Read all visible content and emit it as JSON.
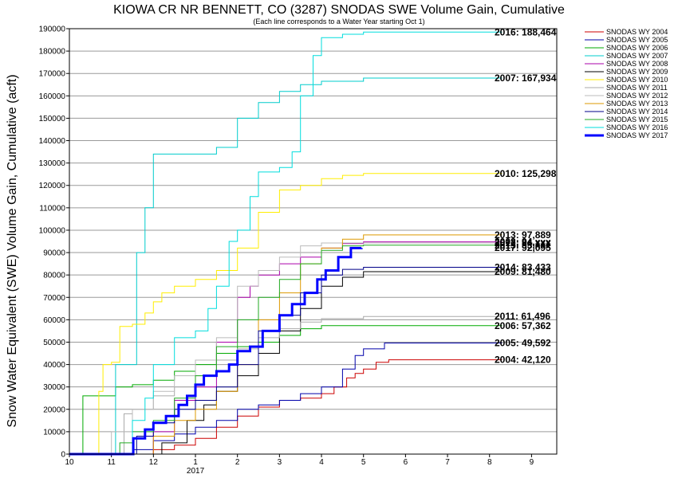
{
  "chart_data": {
    "type": "line",
    "title": "KIOWA CR NR BENNETT, CO (3287) SNODAS SWE Volume Gain, Cumulative",
    "subtitle": "(Each line corresponds to a Water Year starting Oct 1)",
    "ylabel": "Snow Water Equivalent (SWE) Volume Gain, Cumulative (acft)",
    "xlabel": "",
    "x_ticks": [
      {
        "value": 0,
        "label": "10"
      },
      {
        "value": 1,
        "label": "11"
      },
      {
        "value": 2,
        "label": "12"
      },
      {
        "value": 3,
        "label": "1"
      },
      {
        "value": 4,
        "label": "2"
      },
      {
        "value": 5,
        "label": "3"
      },
      {
        "value": 6,
        "label": "4"
      },
      {
        "value": 7,
        "label": "5"
      },
      {
        "value": 8,
        "label": "6"
      },
      {
        "value": 9,
        "label": "7"
      },
      {
        "value": 10,
        "label": "8"
      },
      {
        "value": 11,
        "label": "9"
      }
    ],
    "x_sublabel": "2017",
    "xlim": [
      0,
      11.6
    ],
    "ylim": [
      0,
      190000
    ],
    "y_ticks": [
      0,
      10000,
      20000,
      30000,
      40000,
      50000,
      60000,
      70000,
      80000,
      90000,
      100000,
      110000,
      120000,
      130000,
      140000,
      150000,
      160000,
      170000,
      180000,
      190000
    ],
    "grid": "horizontal",
    "legend_position": "right",
    "series": [
      {
        "name": "SNODAS WY 2004",
        "color": "#cc0000",
        "width": 1,
        "end_label": "2004: 42,120",
        "points": [
          [
            0,
            0
          ],
          [
            1.6,
            0
          ],
          [
            2.0,
            2000
          ],
          [
            2.5,
            4000
          ],
          [
            3.0,
            7000
          ],
          [
            3.5,
            12000
          ],
          [
            4.0,
            17000
          ],
          [
            4.5,
            21000
          ],
          [
            5.0,
            24000
          ],
          [
            5.5,
            25000
          ],
          [
            6.0,
            27000
          ],
          [
            6.3,
            30000
          ],
          [
            6.6,
            34000
          ],
          [
            6.8,
            36000
          ],
          [
            7.0,
            38000
          ],
          [
            7.3,
            41000
          ],
          [
            7.6,
            42120
          ],
          [
            10.3,
            42120
          ]
        ]
      },
      {
        "name": "SNODAS WY 2005",
        "color": "#0000aa",
        "width": 1,
        "end_label": "2005: 49,592",
        "points": [
          [
            0,
            0
          ],
          [
            1.2,
            0
          ],
          [
            1.5,
            2000
          ],
          [
            2.0,
            6000
          ],
          [
            2.5,
            9000
          ],
          [
            3.0,
            12000
          ],
          [
            3.5,
            15000
          ],
          [
            4.0,
            20000
          ],
          [
            4.5,
            22000
          ],
          [
            5.0,
            24000
          ],
          [
            5.5,
            27000
          ],
          [
            6.0,
            30000
          ],
          [
            6.5,
            38000
          ],
          [
            6.8,
            44000
          ],
          [
            7.0,
            47000
          ],
          [
            7.5,
            49592
          ],
          [
            10.3,
            49592
          ]
        ]
      },
      {
        "name": "SNODAS WY 2006",
        "color": "#00aa00",
        "width": 1,
        "end_label": "2006: 57,362",
        "points": [
          [
            0,
            0
          ],
          [
            0.3,
            0
          ],
          [
            0.32,
            26000
          ],
          [
            1.0,
            26000
          ],
          [
            1.1,
            30000
          ],
          [
            1.5,
            31000
          ],
          [
            2.0,
            33000
          ],
          [
            2.5,
            37000
          ],
          [
            3.0,
            40000
          ],
          [
            3.5,
            45000
          ],
          [
            4.0,
            48000
          ],
          [
            4.5,
            50000
          ],
          [
            5.0,
            53000
          ],
          [
            5.5,
            56000
          ],
          [
            6.0,
            57362
          ],
          [
            10.3,
            57362
          ]
        ]
      },
      {
        "name": "SNODAS WY 2007",
        "color": "#00cccc",
        "width": 1,
        "end_label": "2007: 167,934",
        "points": [
          [
            0,
            0
          ],
          [
            1.0,
            0
          ],
          [
            1.1,
            40000
          ],
          [
            1.5,
            40000
          ],
          [
            1.6,
            90000
          ],
          [
            1.8,
            110000
          ],
          [
            2.0,
            134000
          ],
          [
            3.0,
            134000
          ],
          [
            3.5,
            137000
          ],
          [
            4.0,
            150000
          ],
          [
            4.5,
            157000
          ],
          [
            5.0,
            162000
          ],
          [
            5.5,
            165000
          ],
          [
            6.0,
            166500
          ],
          [
            7.0,
            167934
          ],
          [
            10.3,
            167934
          ]
        ]
      },
      {
        "name": "SNODAS WY 2008",
        "color": "#aa00aa",
        "width": 1,
        "end_label": "2008: 94,xxx",
        "points": [
          [
            0,
            0
          ],
          [
            1.5,
            0
          ],
          [
            2.0,
            10000
          ],
          [
            2.5,
            24000
          ],
          [
            3.0,
            30000
          ],
          [
            3.5,
            50000
          ],
          [
            4.0,
            70000
          ],
          [
            4.3,
            75000
          ],
          [
            4.5,
            80000
          ],
          [
            5.0,
            85000
          ],
          [
            5.5,
            88000
          ],
          [
            6.0,
            92000
          ],
          [
            6.5,
            94000
          ],
          [
            7.0,
            94800
          ],
          [
            10.3,
            94800
          ]
        ]
      },
      {
        "name": "SNODAS WY 2009",
        "color": "#000000",
        "width": 1,
        "end_label": "2009: 81,480",
        "points": [
          [
            0,
            0
          ],
          [
            1.8,
            0
          ],
          [
            2.2,
            5000
          ],
          [
            2.8,
            15000
          ],
          [
            3.2,
            22000
          ],
          [
            3.5,
            28000
          ],
          [
            4.0,
            35000
          ],
          [
            4.5,
            45000
          ],
          [
            5.0,
            55000
          ],
          [
            5.5,
            65000
          ],
          [
            6.0,
            75000
          ],
          [
            6.5,
            79000
          ],
          [
            7.0,
            81480
          ],
          [
            10.3,
            81480
          ]
        ]
      },
      {
        "name": "SNODAS WY 2010",
        "color": "#ffee00",
        "width": 1,
        "end_label": "2010: 125,298",
        "points": [
          [
            0,
            0
          ],
          [
            0.6,
            0
          ],
          [
            0.7,
            28000
          ],
          [
            0.8,
            40000
          ],
          [
            1.0,
            41000
          ],
          [
            1.2,
            57000
          ],
          [
            1.5,
            58000
          ],
          [
            1.8,
            63000
          ],
          [
            2.0,
            68000
          ],
          [
            2.2,
            72000
          ],
          [
            2.5,
            75000
          ],
          [
            3.0,
            78000
          ],
          [
            3.5,
            82000
          ],
          [
            4.0,
            92000
          ],
          [
            4.5,
            108000
          ],
          [
            5.0,
            118000
          ],
          [
            5.5,
            120000
          ],
          [
            6.0,
            123000
          ],
          [
            6.5,
            124500
          ],
          [
            7.0,
            125298
          ],
          [
            10.3,
            125298
          ]
        ]
      },
      {
        "name": "SNODAS WY 2011",
        "color": "#aaaaaa",
        "width": 1,
        "end_label": "2011: 61,496",
        "points": [
          [
            0,
            0
          ],
          [
            1.2,
            0
          ],
          [
            1.3,
            18000
          ],
          [
            1.5,
            20000
          ],
          [
            2.0,
            26000
          ],
          [
            2.5,
            30000
          ],
          [
            3.0,
            35000
          ],
          [
            3.5,
            42000
          ],
          [
            4.0,
            47000
          ],
          [
            4.5,
            52000
          ],
          [
            5.0,
            56000
          ],
          [
            5.5,
            59000
          ],
          [
            6.0,
            60500
          ],
          [
            7.0,
            61496
          ],
          [
            10.3,
            61496
          ]
        ]
      },
      {
        "name": "SNODAS WY 2012",
        "color": "#bbbbbb",
        "width": 1,
        "end_label": "2012: 94,xxx",
        "points": [
          [
            0,
            0
          ],
          [
            0.8,
            0
          ],
          [
            1.0,
            10000
          ],
          [
            1.5,
            20000
          ],
          [
            2.0,
            28000
          ],
          [
            2.5,
            35000
          ],
          [
            3.0,
            42000
          ],
          [
            3.5,
            52000
          ],
          [
            4.0,
            75000
          ],
          [
            4.5,
            82000
          ],
          [
            5.0,
            88000
          ],
          [
            5.5,
            93000
          ],
          [
            6.0,
            94300
          ],
          [
            10.3,
            94300
          ]
        ]
      },
      {
        "name": "SNODAS WY 2013",
        "color": "#dd9900",
        "width": 1,
        "end_label": "2013: 97,889",
        "points": [
          [
            0,
            0
          ],
          [
            1.5,
            0
          ],
          [
            2.0,
            8000
          ],
          [
            2.5,
            15000
          ],
          [
            3.0,
            20000
          ],
          [
            3.5,
            28000
          ],
          [
            4.0,
            40000
          ],
          [
            4.5,
            60000
          ],
          [
            5.0,
            72000
          ],
          [
            5.5,
            85000
          ],
          [
            6.0,
            92000
          ],
          [
            6.5,
            96000
          ],
          [
            7.0,
            97889
          ],
          [
            10.3,
            97889
          ]
        ]
      },
      {
        "name": "SNODAS WY 2014",
        "color": "#000088",
        "width": 1,
        "end_label": "2014: 83,433",
        "points": [
          [
            0,
            0
          ],
          [
            1.3,
            0
          ],
          [
            1.6,
            8000
          ],
          [
            2.0,
            14000
          ],
          [
            2.5,
            20000
          ],
          [
            3.0,
            24000
          ],
          [
            3.5,
            30000
          ],
          [
            4.0,
            40000
          ],
          [
            4.5,
            55000
          ],
          [
            5.0,
            62000
          ],
          [
            5.5,
            72000
          ],
          [
            6.0,
            80000
          ],
          [
            6.5,
            82500
          ],
          [
            7.0,
            83433
          ],
          [
            10.3,
            83433
          ]
        ]
      },
      {
        "name": "SNODAS WY 2015",
        "color": "#22aa22",
        "width": 1,
        "end_label": "2015: 93,xxx",
        "points": [
          [
            0,
            0
          ],
          [
            1.0,
            0
          ],
          [
            1.2,
            5000
          ],
          [
            1.5,
            10000
          ],
          [
            2.0,
            15000
          ],
          [
            2.5,
            25000
          ],
          [
            3.0,
            35000
          ],
          [
            3.5,
            48000
          ],
          [
            4.0,
            60000
          ],
          [
            4.5,
            70000
          ],
          [
            5.0,
            78000
          ],
          [
            5.5,
            85000
          ],
          [
            6.0,
            91000
          ],
          [
            6.5,
            93000
          ],
          [
            7.0,
            93300
          ],
          [
            10.3,
            93300
          ]
        ]
      },
      {
        "name": "SNODAS WY 2016",
        "color": "#00dddd",
        "width": 1,
        "end_label": "2016: 188,464",
        "points": [
          [
            0,
            0
          ],
          [
            1.4,
            0
          ],
          [
            1.5,
            15000
          ],
          [
            1.8,
            25000
          ],
          [
            2.0,
            40000
          ],
          [
            2.5,
            52000
          ],
          [
            3.0,
            55000
          ],
          [
            3.3,
            65000
          ],
          [
            3.5,
            75000
          ],
          [
            3.8,
            95000
          ],
          [
            4.0,
            100000
          ],
          [
            4.3,
            115000
          ],
          [
            4.5,
            126000
          ],
          [
            5.0,
            128000
          ],
          [
            5.3,
            135000
          ],
          [
            5.5,
            160000
          ],
          [
            5.8,
            178000
          ],
          [
            6.0,
            186000
          ],
          [
            6.5,
            187500
          ],
          [
            7.0,
            188464
          ],
          [
            10.3,
            188464
          ]
        ]
      },
      {
        "name": "SNODAS WY 2017",
        "color": "#0000ff",
        "width": 3,
        "end_label": "2017: 92,095",
        "points": [
          [
            0,
            0
          ],
          [
            1.5,
            0
          ],
          [
            1.52,
            7000
          ],
          [
            1.8,
            11000
          ],
          [
            2.0,
            14000
          ],
          [
            2.3,
            17000
          ],
          [
            2.6,
            22000
          ],
          [
            2.8,
            26000
          ],
          [
            3.0,
            31000
          ],
          [
            3.2,
            35000
          ],
          [
            3.5,
            37000
          ],
          [
            3.8,
            40000
          ],
          [
            4.0,
            46000
          ],
          [
            4.3,
            48000
          ],
          [
            4.6,
            55000
          ],
          [
            5.0,
            62000
          ],
          [
            5.3,
            67000
          ],
          [
            5.6,
            72000
          ],
          [
            5.9,
            78000
          ],
          [
            6.1,
            82000
          ],
          [
            6.4,
            88000
          ],
          [
            6.7,
            92000
          ],
          [
            6.95,
            92095
          ]
        ]
      }
    ]
  }
}
